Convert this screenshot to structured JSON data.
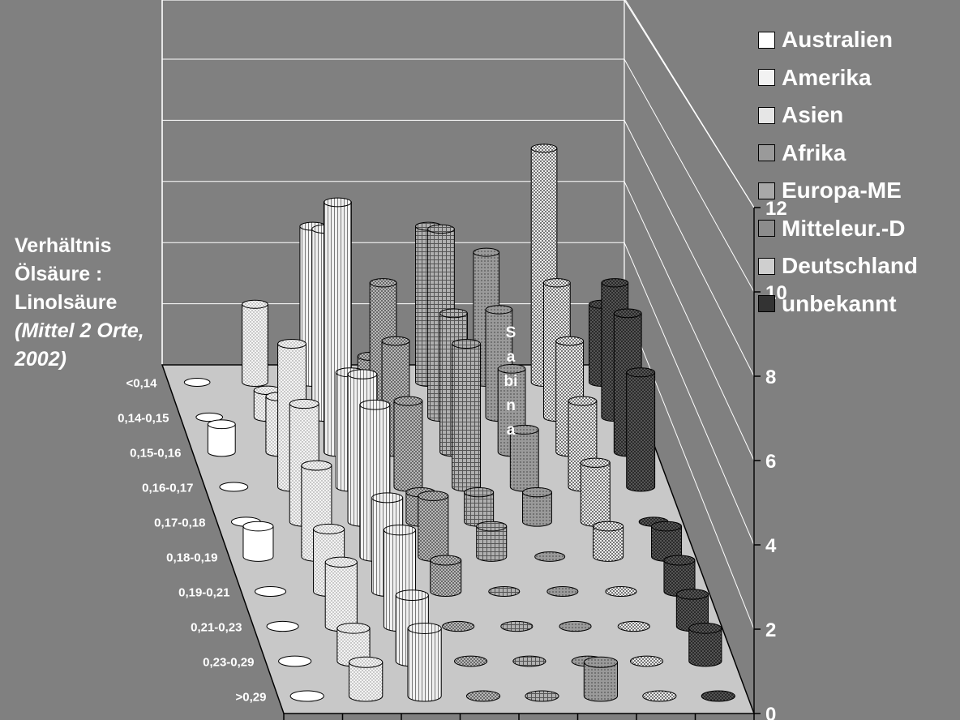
{
  "chart_data": {
    "type": "bar3d",
    "ylabel": [
      "Verhältnis",
      "Ölsäure  :",
      "Linolsäure"
    ],
    "ylabel_italic": [
      "(Mittel 2 Orte,",
      "2002)"
    ],
    "rows": [
      "<0,14",
      "0,14-0,15",
      "0,15-0,16",
      "0,16-0,17",
      "0,17-0,18",
      "0,18-0,19",
      "0,19-0,21",
      "0,21-0,23",
      "0,23-0,29",
      ">0,29"
    ],
    "zlim": [
      0,
      12
    ],
    "zticks": [
      "0",
      "2",
      "4",
      "6",
      "8",
      "10",
      "12"
    ],
    "annotation": "Sabina",
    "series": [
      {
        "name": "Australien",
        "values": [
          0,
          0,
          1,
          0,
          0,
          1,
          0,
          0,
          0,
          0
        ]
      },
      {
        "name": "Amerika",
        "values": [
          3,
          1,
          2,
          5,
          4,
          3,
          2,
          2,
          1,
          1
        ]
      },
      {
        "name": "Asien",
        "values": [
          6,
          7,
          9,
          4,
          5,
          5,
          3,
          3,
          2,
          2
        ]
      },
      {
        "name": "Afrika",
        "values": [
          1,
          5,
          4,
          3,
          1,
          2,
          1,
          0,
          0,
          0
        ]
      },
      {
        "name": "Europa-ME",
        "values": [
          6,
          7,
          5,
          5,
          1,
          1,
          0,
          0,
          0,
          0
        ]
      },
      {
        "name": "Mitteleur.-D",
        "values": [
          5,
          4,
          3,
          2,
          1,
          0,
          0,
          0,
          0,
          1
        ]
      },
      {
        "name": "Deutschland",
        "values": [
          9,
          5,
          4,
          3,
          2,
          1,
          0,
          0,
          0,
          0
        ]
      },
      {
        "name": "unbekannt",
        "values": [
          3,
          5,
          5,
          4,
          0,
          1,
          1,
          1,
          1,
          0
        ]
      }
    ],
    "colors": [
      "#ffffff",
      "#f2f2f2",
      "#e6e6e6",
      "#9a9a9a",
      "#a8a8a8",
      "#8c8c8c",
      "#cfcfcf",
      "#333333"
    ]
  }
}
